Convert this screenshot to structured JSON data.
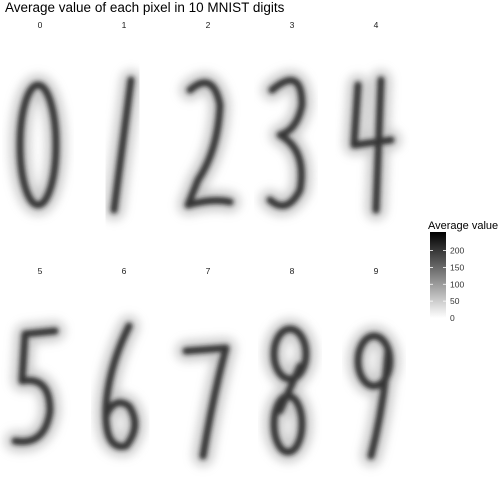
{
  "chart_data": {
    "type": "heatmap",
    "title": "Average value of each pixel in 10 MNIST digits",
    "facets": [
      "0",
      "1",
      "2",
      "3",
      "4",
      "5",
      "6",
      "7",
      "8",
      "9"
    ],
    "legend": {
      "title": "Average value",
      "breaks": [
        0,
        50,
        100,
        150,
        200
      ],
      "range": [
        0,
        255
      ],
      "colors": {
        "low": "#ffffff",
        "high": "#000000"
      },
      "position": "right"
    },
    "grid": false
  }
}
